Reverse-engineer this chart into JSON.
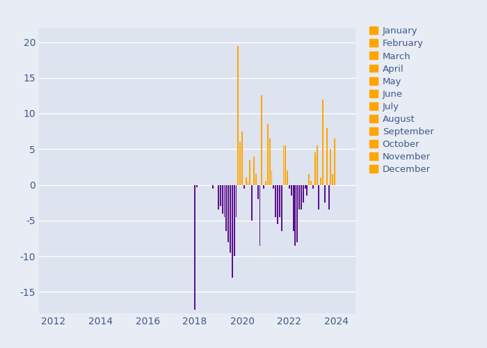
{
  "bg_color": "#e8ecf4",
  "plot_bg_color": "#dde3ef",
  "orange_color": "#FFA500",
  "purple_color": "#5B0F8C",
  "xlim": [
    2011.4,
    2024.8
  ],
  "ylim": [
    -18,
    22
  ],
  "yticks": [
    -15,
    -10,
    -5,
    0,
    5,
    10,
    15,
    20
  ],
  "xticks": [
    2012,
    2014,
    2016,
    2018,
    2020,
    2022,
    2024
  ],
  "legend_months": [
    "January",
    "February",
    "March",
    "April",
    "May",
    "June",
    "July",
    "August",
    "September",
    "October",
    "November",
    "December"
  ],
  "bars": [
    {
      "year": 2018.0,
      "month": 1,
      "value": -17.5
    },
    {
      "year": 2018.08,
      "month": 2,
      "value": -0.3
    },
    {
      "year": 2018.75,
      "month": 9,
      "value": -0.5
    },
    {
      "year": 2019.0,
      "month": 1,
      "value": -3.5
    },
    {
      "year": 2019.08,
      "month": 2,
      "value": -3.0
    },
    {
      "year": 2019.17,
      "month": 3,
      "value": -4.0
    },
    {
      "year": 2019.25,
      "month": 4,
      "value": -4.5
    },
    {
      "year": 2019.33,
      "month": 5,
      "value": -6.5
    },
    {
      "year": 2019.42,
      "month": 6,
      "value": -8.0
    },
    {
      "year": 2019.5,
      "month": 7,
      "value": -9.5
    },
    {
      "year": 2019.58,
      "month": 8,
      "value": -13.0
    },
    {
      "year": 2019.67,
      "month": 9,
      "value": -10.0
    },
    {
      "year": 2019.75,
      "month": 10,
      "value": -4.5
    },
    {
      "year": 2019.83,
      "month": 11,
      "value": 19.5
    },
    {
      "year": 2019.92,
      "month": 12,
      "value": 6.0
    },
    {
      "year": 2020.0,
      "month": 1,
      "value": 7.5
    },
    {
      "year": 2020.08,
      "month": 2,
      "value": -0.5
    },
    {
      "year": 2020.17,
      "month": 3,
      "value": 1.0
    },
    {
      "year": 2020.25,
      "month": 4,
      "value": 0.5
    },
    {
      "year": 2020.33,
      "month": 5,
      "value": 3.5
    },
    {
      "year": 2020.42,
      "month": 6,
      "value": -5.0
    },
    {
      "year": 2020.5,
      "month": 7,
      "value": 4.0
    },
    {
      "year": 2020.58,
      "month": 8,
      "value": 1.5
    },
    {
      "year": 2020.67,
      "month": 9,
      "value": -2.0
    },
    {
      "year": 2020.75,
      "month": 10,
      "value": -8.5
    },
    {
      "year": 2020.83,
      "month": 11,
      "value": 12.5
    },
    {
      "year": 2020.92,
      "month": 12,
      "value": -0.5
    },
    {
      "year": 2021.0,
      "month": 1,
      "value": 0.5
    },
    {
      "year": 2021.08,
      "month": 2,
      "value": 8.5
    },
    {
      "year": 2021.17,
      "month": 3,
      "value": 6.5
    },
    {
      "year": 2021.25,
      "month": 4,
      "value": 2.0
    },
    {
      "year": 2021.33,
      "month": 5,
      "value": -0.5
    },
    {
      "year": 2021.42,
      "month": 6,
      "value": -4.5
    },
    {
      "year": 2021.5,
      "month": 7,
      "value": -5.5
    },
    {
      "year": 2021.58,
      "month": 8,
      "value": -4.5
    },
    {
      "year": 2021.67,
      "month": 9,
      "value": -6.5
    },
    {
      "year": 2021.75,
      "month": 10,
      "value": 5.5
    },
    {
      "year": 2021.83,
      "month": 11,
      "value": 5.5
    },
    {
      "year": 2021.92,
      "month": 12,
      "value": 2.0
    },
    {
      "year": 2022.0,
      "month": 1,
      "value": -0.5
    },
    {
      "year": 2022.08,
      "month": 2,
      "value": -1.5
    },
    {
      "year": 2022.17,
      "month": 3,
      "value": -6.5
    },
    {
      "year": 2022.25,
      "month": 4,
      "value": -8.5
    },
    {
      "year": 2022.33,
      "month": 5,
      "value": -8.0
    },
    {
      "year": 2022.42,
      "month": 6,
      "value": -3.5
    },
    {
      "year": 2022.5,
      "month": 7,
      "value": -3.5
    },
    {
      "year": 2022.58,
      "month": 8,
      "value": -2.5
    },
    {
      "year": 2022.67,
      "month": 9,
      "value": -0.5
    },
    {
      "year": 2022.75,
      "month": 10,
      "value": -1.5
    },
    {
      "year": 2022.83,
      "month": 11,
      "value": 1.5
    },
    {
      "year": 2022.92,
      "month": 12,
      "value": 0.5
    },
    {
      "year": 2023.0,
      "month": 1,
      "value": -0.5
    },
    {
      "year": 2023.08,
      "month": 2,
      "value": 4.5
    },
    {
      "year": 2023.17,
      "month": 3,
      "value": 5.5
    },
    {
      "year": 2023.25,
      "month": 4,
      "value": -3.5
    },
    {
      "year": 2023.33,
      "month": 5,
      "value": 1.0
    },
    {
      "year": 2023.42,
      "month": 6,
      "value": 12.0
    },
    {
      "year": 2023.5,
      "month": 7,
      "value": -2.5
    },
    {
      "year": 2023.58,
      "month": 8,
      "value": 8.0
    },
    {
      "year": 2023.67,
      "month": 9,
      "value": -3.5
    },
    {
      "year": 2023.75,
      "month": 10,
      "value": 5.0
    },
    {
      "year": 2023.83,
      "month": 11,
      "value": 1.5
    },
    {
      "year": 2023.92,
      "month": 12,
      "value": 6.5
    }
  ]
}
